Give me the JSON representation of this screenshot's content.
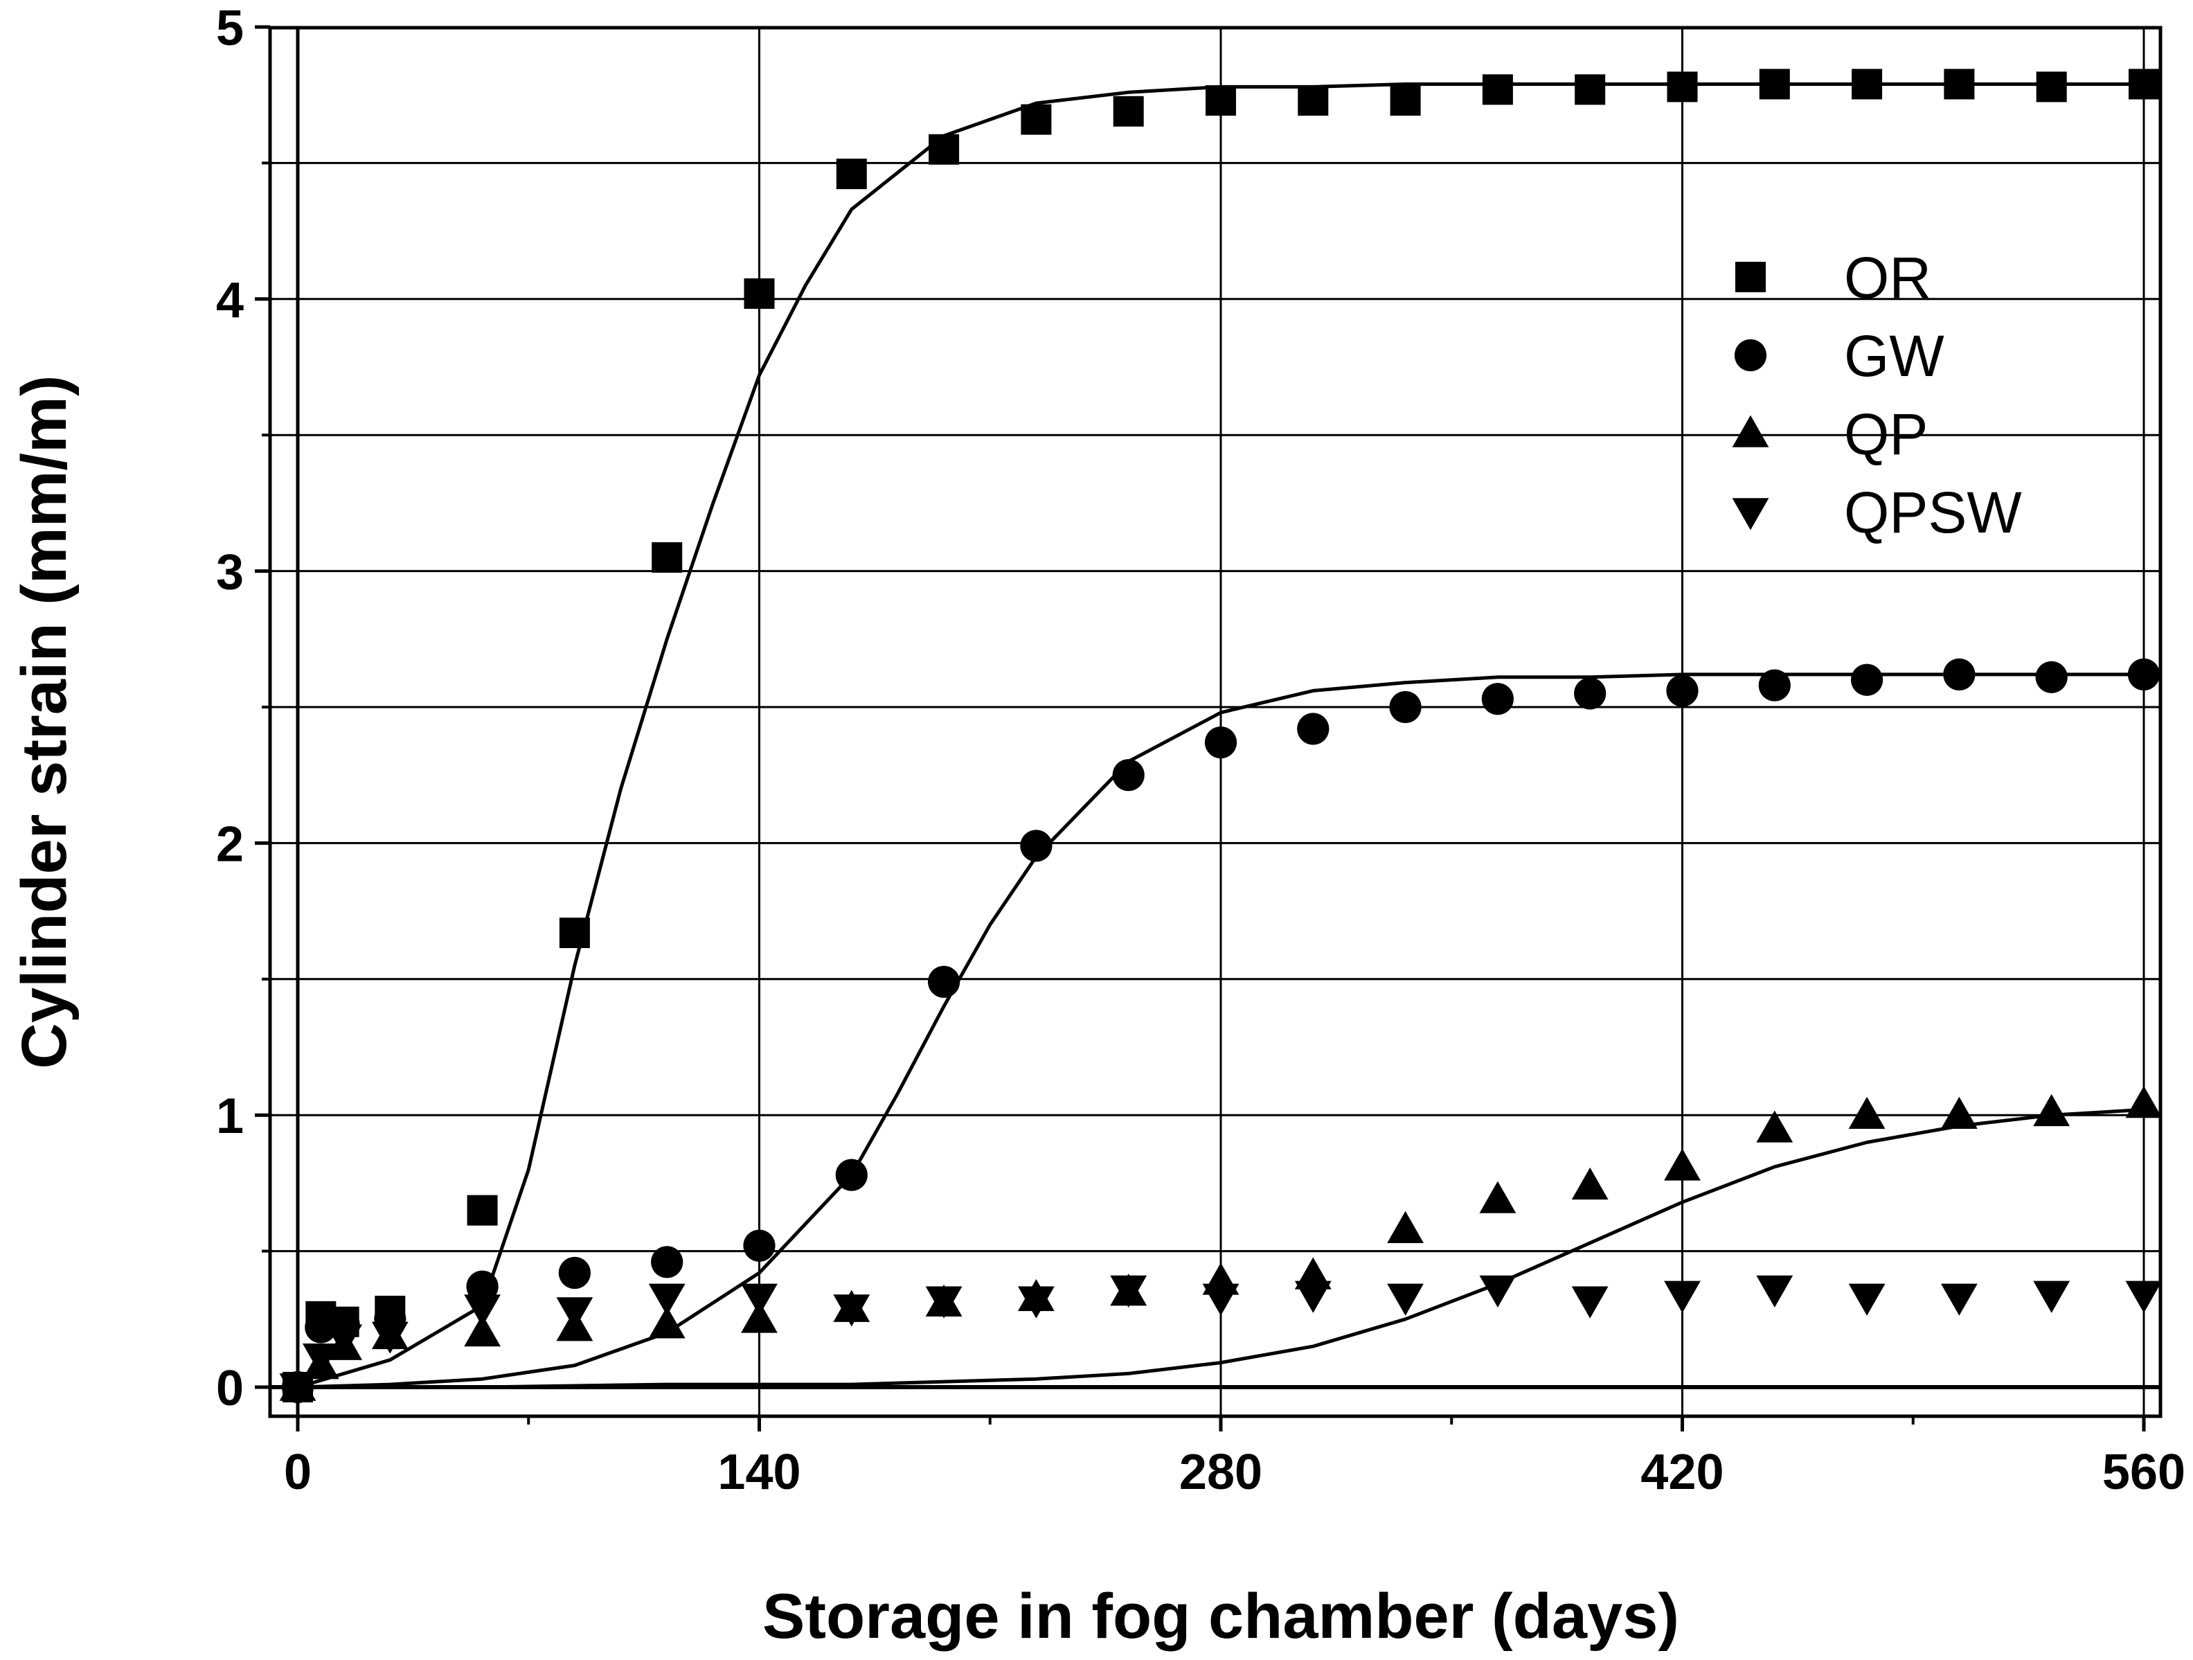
{
  "chart_data": {
    "type": "scatter",
    "xlabel": "Storage in fog chamber (days)",
    "ylabel": "Cylinder strain (mm/m)",
    "xlim": [
      -7,
      567
    ],
    "ylim": [
      -0.1,
      5
    ],
    "xticks": [
      0,
      140,
      280,
      420,
      560
    ],
    "yticks": [
      0,
      1,
      2,
      3,
      4,
      5
    ],
    "xtick_labels": [
      "0",
      "140",
      "280",
      "420",
      "560"
    ],
    "ytick_labels": [
      "0",
      "1",
      "2",
      "3",
      "4",
      "5"
    ],
    "grid": true,
    "legend_position": "top-right",
    "series": [
      {
        "name": "OR",
        "marker": "square",
        "x": [
          0,
          7,
          14,
          28,
          56,
          84,
          112,
          140,
          168,
          196,
          224,
          252,
          280,
          308,
          336,
          364,
          392,
          420,
          448,
          476,
          504,
          532,
          560
        ],
        "y": [
          0,
          0.26,
          0.24,
          0.28,
          0.65,
          1.67,
          3.05,
          4.02,
          4.46,
          4.55,
          4.66,
          4.69,
          4.73,
          4.73,
          4.73,
          4.77,
          4.77,
          4.78,
          4.79,
          4.79,
          4.79,
          4.78,
          4.79
        ]
      },
      {
        "name": "GW",
        "marker": "circle",
        "x": [
          0,
          7,
          14,
          28,
          56,
          84,
          112,
          140,
          168,
          196,
          224,
          252,
          280,
          308,
          336,
          364,
          392,
          420,
          448,
          476,
          504,
          532,
          560
        ],
        "y": [
          0,
          0.22,
          0.23,
          0.25,
          0.37,
          0.42,
          0.46,
          0.52,
          0.78,
          1.49,
          1.99,
          2.25,
          2.37,
          2.42,
          2.5,
          2.53,
          2.55,
          2.56,
          2.58,
          2.6,
          2.62,
          2.61,
          2.62
        ]
      },
      {
        "name": "QP",
        "marker": "triangle-up",
        "x": [
          0,
          7,
          14,
          28,
          56,
          84,
          112,
          140,
          168,
          196,
          224,
          252,
          280,
          308,
          336,
          364,
          392,
          420,
          448,
          476,
          504,
          532,
          560
        ],
        "y": [
          0,
          0.08,
          0.15,
          0.19,
          0.2,
          0.22,
          0.23,
          0.25,
          0.29,
          0.31,
          0.33,
          0.35,
          0.39,
          0.41,
          0.58,
          0.69,
          0.74,
          0.81,
          0.95,
          1.0,
          1.0,
          1.01,
          1.04
        ]
      },
      {
        "name": "QPSW",
        "marker": "triangle-down",
        "x": [
          0,
          7,
          14,
          28,
          56,
          84,
          112,
          140,
          168,
          196,
          224,
          252,
          280,
          308,
          336,
          364,
          392,
          420,
          448,
          476,
          504,
          532,
          560
        ],
        "y": [
          0,
          0.11,
          0.18,
          0.19,
          0.29,
          0.28,
          0.33,
          0.33,
          0.29,
          0.32,
          0.32,
          0.36,
          0.33,
          0.34,
          0.33,
          0.36,
          0.32,
          0.34,
          0.36,
          0.33,
          0.33,
          0.34,
          0.34
        ]
      }
    ],
    "fit_curves": [
      {
        "series": "OR",
        "x": [
          0,
          28,
          56,
          70,
          84,
          98,
          112,
          126,
          140,
          154,
          168,
          196,
          224,
          252,
          280,
          308,
          336,
          364,
          392,
          420,
          448,
          476,
          504,
          532,
          560
        ],
        "y": [
          0,
          0.1,
          0.3,
          0.8,
          1.55,
          2.2,
          2.75,
          3.25,
          3.72,
          4.05,
          4.33,
          4.6,
          4.72,
          4.76,
          4.78,
          4.78,
          4.79,
          4.79,
          4.79,
          4.79,
          4.79,
          4.79,
          4.79,
          4.79,
          4.79
        ]
      },
      {
        "series": "GW",
        "x": [
          0,
          28,
          56,
          84,
          112,
          140,
          168,
          182,
          196,
          210,
          224,
          252,
          280,
          308,
          336,
          364,
          392,
          420,
          448,
          476,
          504,
          532,
          560
        ],
        "y": [
          0,
          0.01,
          0.03,
          0.08,
          0.2,
          0.42,
          0.78,
          1.08,
          1.4,
          1.7,
          1.95,
          2.3,
          2.48,
          2.56,
          2.59,
          2.61,
          2.61,
          2.62,
          2.62,
          2.62,
          2.62,
          2.62,
          2.62
        ]
      },
      {
        "series": "QP",
        "x": [
          0,
          56,
          112,
          168,
          224,
          252,
          280,
          308,
          336,
          364,
          392,
          420,
          448,
          476,
          504,
          532,
          560
        ],
        "y": [
          0,
          0.0,
          0.01,
          0.01,
          0.03,
          0.05,
          0.09,
          0.15,
          0.25,
          0.38,
          0.53,
          0.68,
          0.81,
          0.9,
          0.96,
          1.0,
          1.02
        ]
      }
    ]
  }
}
